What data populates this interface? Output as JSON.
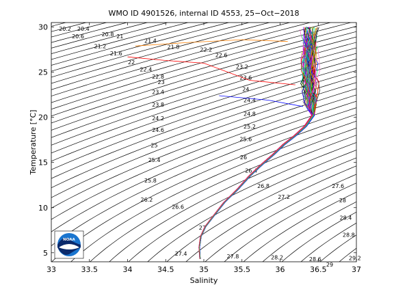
{
  "figure": {
    "title": "WMO ID 4901526, internal ID 4553, 25−Oct−2018",
    "logo_text": "NOAA",
    "colors": {
      "background": "#ffffff",
      "contour": "#000000",
      "axes": "#000000",
      "logo_blue": "#1a75cf",
      "logo_navy": "#0b2a6b"
    }
  },
  "chart_data": {
    "type": "line",
    "title": "WMO ID 4901526, internal ID 4553, 25−Oct−2018",
    "xlabel": "Salinity",
    "ylabel": "Temperature [°C]",
    "xlim": [
      33,
      37
    ],
    "ylim": [
      4,
      30.5
    ],
    "xticks": [
      33,
      33.5,
      34,
      34.5,
      35,
      35.5,
      36,
      36.5,
      37
    ],
    "xtick_labels": [
      "33",
      "33.5",
      "34",
      "34.5",
      "35",
      "35.5",
      "36",
      "36.5",
      "37"
    ],
    "yticks": [
      5,
      10,
      15,
      20,
      25,
      30
    ],
    "ytick_labels": [
      "5",
      "10",
      "15",
      "20",
      "25",
      "30"
    ],
    "grid": false,
    "legend": "none",
    "density_contours": {
      "label_step": 0.2,
      "color": "#000000",
      "labels": [
        {
          "value": "20.2",
          "s": 33.18,
          "t": 29.8
        },
        {
          "value": "20.4",
          "s": 33.42,
          "t": 29.8
        },
        {
          "value": "20.6",
          "s": 33.35,
          "t": 29.0
        },
        {
          "value": "20.8",
          "s": 33.74,
          "t": 29.2
        },
        {
          "value": "21",
          "s": 33.9,
          "t": 29.0
        },
        {
          "value": "21.2",
          "s": 33.64,
          "t": 27.9
        },
        {
          "value": "21.4",
          "s": 34.3,
          "t": 28.5
        },
        {
          "value": "21.6",
          "s": 33.85,
          "t": 27.1
        },
        {
          "value": "21.8",
          "s": 34.6,
          "t": 27.8
        },
        {
          "value": "22",
          "s": 34.05,
          "t": 26.1
        },
        {
          "value": "22.2",
          "s": 35.03,
          "t": 27.5
        },
        {
          "value": "22.4",
          "s": 34.24,
          "t": 25.3
        },
        {
          "value": "22.6",
          "s": 35.23,
          "t": 26.9
        },
        {
          "value": "22.8",
          "s": 34.4,
          "t": 24.5
        },
        {
          "value": "23",
          "s": 34.44,
          "t": 23.9
        },
        {
          "value": "23.2",
          "s": 35.5,
          "t": 25.6
        },
        {
          "value": "23.4",
          "s": 34.4,
          "t": 22.8
        },
        {
          "value": "23.6",
          "s": 35.55,
          "t": 24.4
        },
        {
          "value": "23.8",
          "s": 34.4,
          "t": 21.4
        },
        {
          "value": "24",
          "s": 35.55,
          "t": 23.1
        },
        {
          "value": "24.2",
          "s": 34.4,
          "t": 19.9
        },
        {
          "value": "24.4",
          "s": 35.6,
          "t": 21.9
        },
        {
          "value": "24.6",
          "s": 34.4,
          "t": 18.6
        },
        {
          "value": "24.8",
          "s": 35.6,
          "t": 20.4
        },
        {
          "value": "25",
          "s": 34.35,
          "t": 16.9
        },
        {
          "value": "25.2",
          "s": 35.6,
          "t": 19.0
        },
        {
          "value": "25.4",
          "s": 34.35,
          "t": 15.3
        },
        {
          "value": "25.6",
          "s": 35.55,
          "t": 17.6
        },
        {
          "value": "25.8",
          "s": 34.3,
          "t": 13.0
        },
        {
          "value": "26",
          "s": 35.52,
          "t": 15.6
        },
        {
          "value": "26.2",
          "s": 34.25,
          "t": 10.9
        },
        {
          "value": "26.4",
          "s": 35.62,
          "t": 14.1
        },
        {
          "value": "26.6",
          "s": 34.66,
          "t": 10.1
        },
        {
          "value": "26.8",
          "s": 35.78,
          "t": 12.4
        },
        {
          "value": "27",
          "s": 34.98,
          "t": 7.8
        },
        {
          "value": "27.2",
          "s": 36.05,
          "t": 11.2
        },
        {
          "value": "27.4",
          "s": 34.7,
          "t": 4.9
        },
        {
          "value": "27.6",
          "s": 36.76,
          "t": 12.4
        },
        {
          "value": "27.8",
          "s": 35.38,
          "t": 4.6
        },
        {
          "value": "28",
          "s": 36.82,
          "t": 10.8
        },
        {
          "value": "28.2",
          "s": 35.96,
          "t": 4.5
        },
        {
          "value": "28.4",
          "s": 36.86,
          "t": 8.9
        },
        {
          "value": "28.6",
          "s": 36.46,
          "t": 4.3
        },
        {
          "value": "28.8",
          "s": 36.9,
          "t": 7.0
        },
        {
          "value": "29",
          "s": 36.65,
          "t": 3.7
        },
        {
          "value": "29.2",
          "s": 36.98,
          "t": 4.4
        }
      ]
    },
    "profiles": {
      "count": 90,
      "deep_water_curve": [
        [
          34.95,
          4.3
        ],
        [
          34.94,
          5.6
        ],
        [
          34.96,
          6.8
        ],
        [
          35.02,
          7.9
        ],
        [
          35.12,
          9.0
        ],
        [
          35.27,
          10.6
        ],
        [
          35.44,
          12.0
        ],
        [
          35.6,
          13.5
        ],
        [
          35.75,
          14.7
        ],
        [
          35.9,
          15.8
        ],
        [
          36.05,
          17.0
        ],
        [
          36.2,
          18.0
        ],
        [
          36.33,
          19.0
        ],
        [
          36.43,
          20.2
        ]
      ],
      "surface_cloud": {
        "salinity_range": [
          35.8,
          36.9
        ],
        "temperature_range": [
          17.5,
          30.0
        ]
      },
      "outliers": [
        [
          [
            36.2,
            23.6
          ],
          [
            35.6,
            24.1
          ],
          [
            35.0,
            26.0
          ],
          [
            34.5,
            26.3
          ],
          [
            34.0,
            26.7
          ]
        ],
        [
          [
            36.1,
            28.4
          ],
          [
            35.5,
            28.6
          ],
          [
            34.8,
            28.3
          ],
          [
            34.1,
            27.9
          ]
        ],
        [
          [
            36.3,
            21.2
          ],
          [
            35.85,
            21.9
          ],
          [
            35.2,
            22.4
          ]
        ]
      ],
      "colors": [
        "#0000ff",
        "#00a000",
        "#ff0000",
        "#00c8c8",
        "#c800c8",
        "#a0a000",
        "#000000",
        "#ff7f00",
        "#7f00ff",
        "#00ff7f",
        "#808080",
        "#ff66cc"
      ]
    }
  }
}
